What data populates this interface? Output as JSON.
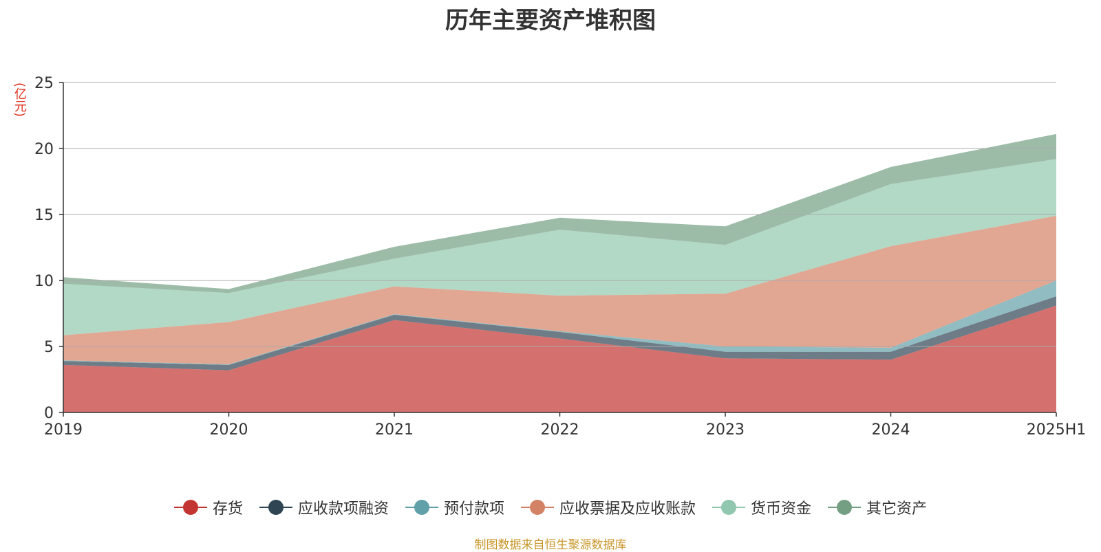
{
  "chart_data": {
    "type": "area",
    "stacked": true,
    "title": "历年主要资产堆积图",
    "unit_label": "(亿元)",
    "categories": [
      "2019",
      "2020",
      "2021",
      "2022",
      "2023",
      "2024",
      "2025H1"
    ],
    "ylim": [
      0,
      25
    ],
    "yticks": [
      0,
      5,
      10,
      15,
      20,
      25
    ],
    "grid": true,
    "legend_position": "bottom",
    "series": [
      {
        "name": "存货",
        "color": "#c23531",
        "values": [
          3.6,
          3.2,
          7.0,
          5.6,
          4.1,
          4.0,
          8.1
        ]
      },
      {
        "name": "应收款项融资",
        "color": "#2f4554",
        "values": [
          0.3,
          0.4,
          0.4,
          0.5,
          0.5,
          0.6,
          0.7
        ]
      },
      {
        "name": "预付款项",
        "color": "#61a0a8",
        "values": [
          0.05,
          0.05,
          0.05,
          0.05,
          0.4,
          0.3,
          1.2
        ]
      },
      {
        "name": "应收票据及应收账款",
        "color": "#d48265",
        "values": [
          1.9,
          3.2,
          2.1,
          2.7,
          4.0,
          7.7,
          4.9
        ]
      },
      {
        "name": "货币资金",
        "color": "#91c7ae",
        "values": [
          3.9,
          2.2,
          2.1,
          5.0,
          3.7,
          4.7,
          4.3
        ]
      },
      {
        "name": "其它资产",
        "color": "#749f83",
        "values": [
          0.5,
          0.3,
          0.9,
          0.9,
          1.4,
          1.3,
          1.9
        ]
      }
    ]
  },
  "source_note": "制图数据来自恒生聚源数据库"
}
